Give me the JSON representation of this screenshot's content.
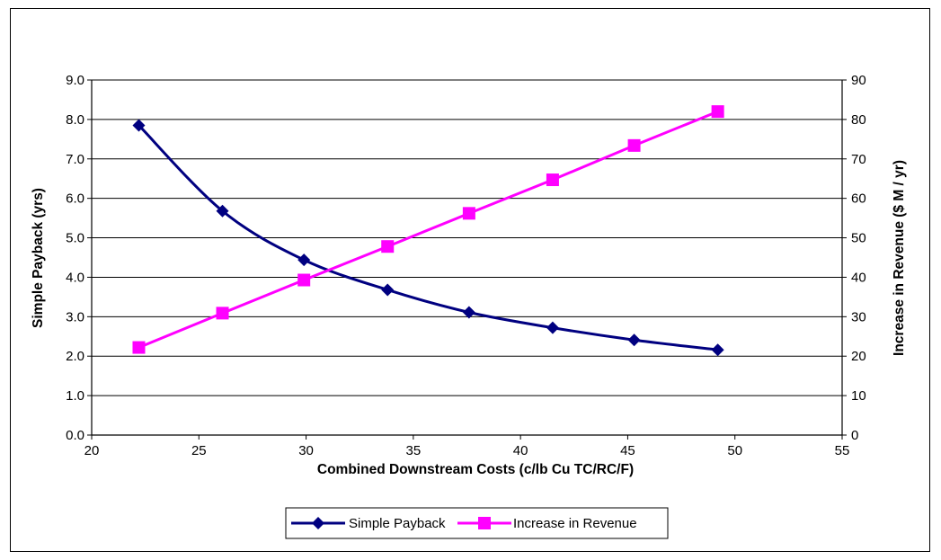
{
  "chart_data": {
    "type": "line",
    "title": "",
    "xlabel": "Combined Downstream Costs (c/lb Cu TC/RC/F)",
    "ylabel_left": "Simple Payback (yrs)",
    "ylabel_right": "Increase in Revenue ($ M / yr)",
    "xlim": [
      20,
      55
    ],
    "ylim_left": [
      0,
      9
    ],
    "ylim_right": [
      0,
      90
    ],
    "x_ticks": [
      "20",
      "25",
      "30",
      "35",
      "40",
      "45",
      "50",
      "55"
    ],
    "y_left_ticks": [
      "0.0",
      "1.0",
      "2.0",
      "3.0",
      "4.0",
      "5.0",
      "6.0",
      "7.0",
      "8.0",
      "9.0"
    ],
    "y_right_ticks": [
      "0",
      "10",
      "20",
      "30",
      "40",
      "50",
      "60",
      "70",
      "80",
      "90"
    ],
    "grid": "horizontal",
    "legend_position": "bottom",
    "series": [
      {
        "name": "Simple Payback",
        "axis": "left",
        "color": "#000080",
        "marker": "diamond",
        "smooth": true,
        "x": [
          22.2,
          26.1,
          29.9,
          33.8,
          37.6,
          41.5,
          45.3,
          49.2
        ],
        "values": [
          7.85,
          5.68,
          4.44,
          3.68,
          3.11,
          2.72,
          2.41,
          2.16
        ]
      },
      {
        "name": "Increase in Revenue",
        "axis": "right",
        "color": "#FF00FF",
        "marker": "square",
        "smooth": false,
        "x": [
          22.2,
          26.1,
          29.9,
          33.8,
          37.6,
          41.5,
          45.3,
          49.2
        ],
        "values": [
          22.2,
          30.9,
          39.3,
          47.8,
          56.2,
          64.7,
          73.4,
          82.0
        ]
      }
    ]
  }
}
